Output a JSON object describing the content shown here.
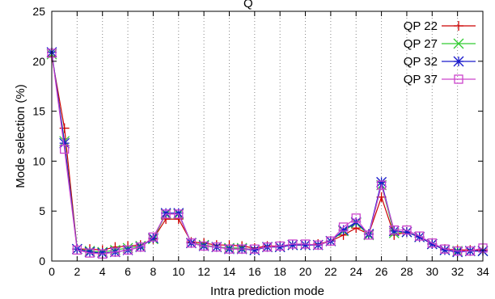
{
  "chart_data": {
    "type": "line",
    "title_fragment": "Q",
    "xlabel": "Intra prediction mode",
    "ylabel": "Mode selection (%)",
    "xlim": [
      0,
      34
    ],
    "ylim": [
      0,
      25
    ],
    "x_ticks": [
      0,
      2,
      4,
      6,
      8,
      10,
      12,
      14,
      16,
      18,
      20,
      22,
      24,
      26,
      28,
      30,
      32,
      34
    ],
    "y_ticks": [
      0,
      5,
      10,
      15,
      20,
      25
    ],
    "grid": "vertical-dotted",
    "legend_position": "top-right",
    "x": [
      0,
      1,
      2,
      3,
      4,
      5,
      6,
      7,
      8,
      9,
      10,
      11,
      12,
      13,
      14,
      15,
      16,
      17,
      18,
      19,
      20,
      21,
      22,
      23,
      24,
      25,
      26,
      27,
      28,
      29,
      30,
      31,
      32,
      33,
      34
    ],
    "series": [
      {
        "name": "QP 22",
        "color": "#cc0000",
        "marker": "plus",
        "values": [
          20.5,
          13.3,
          1.2,
          1.2,
          1.1,
          1.4,
          1.5,
          1.6,
          2.2,
          4.2,
          4.2,
          1.9,
          1.8,
          1.6,
          1.6,
          1.5,
          1.3,
          1.5,
          1.5,
          1.6,
          1.6,
          1.7,
          2.0,
          2.6,
          3.3,
          2.7,
          6.4,
          2.6,
          2.9,
          2.4,
          1.7,
          1.2,
          1.1,
          1.1,
          1.1
        ]
      },
      {
        "name": "QP 27",
        "color": "#33cc33",
        "marker": "cross",
        "values": [
          20.7,
          12.0,
          1.2,
          1.0,
          0.9,
          1.1,
          1.3,
          1.5,
          2.2,
          4.7,
          4.7,
          1.8,
          1.6,
          1.4,
          1.3,
          1.3,
          1.1,
          1.4,
          1.4,
          1.6,
          1.6,
          1.6,
          2.0,
          3.0,
          3.8,
          2.6,
          7.6,
          2.8,
          2.9,
          2.4,
          1.7,
          1.1,
          1.0,
          1.0,
          1.0
        ]
      },
      {
        "name": "QP 32",
        "color": "#1a1acc",
        "marker": "star",
        "values": [
          20.9,
          11.8,
          1.2,
          0.9,
          0.8,
          0.9,
          1.1,
          1.4,
          2.3,
          4.8,
          4.8,
          1.8,
          1.5,
          1.4,
          1.2,
          1.2,
          1.1,
          1.4,
          1.4,
          1.6,
          1.6,
          1.6,
          2.0,
          3.1,
          3.9,
          2.7,
          7.9,
          3.0,
          2.9,
          2.4,
          1.7,
          1.1,
          0.9,
          1.0,
          1.0
        ]
      },
      {
        "name": "QP 37",
        "color": "#cc44cc",
        "marker": "square",
        "values": [
          20.8,
          11.2,
          1.1,
          0.8,
          0.7,
          0.9,
          1.1,
          1.4,
          2.4,
          4.7,
          4.7,
          1.8,
          1.5,
          1.4,
          1.2,
          1.2,
          1.2,
          1.4,
          1.5,
          1.7,
          1.7,
          1.6,
          2.0,
          3.4,
          4.3,
          2.6,
          7.6,
          3.1,
          3.1,
          2.5,
          1.8,
          1.2,
          1.0,
          1.0,
          1.3
        ]
      }
    ]
  }
}
